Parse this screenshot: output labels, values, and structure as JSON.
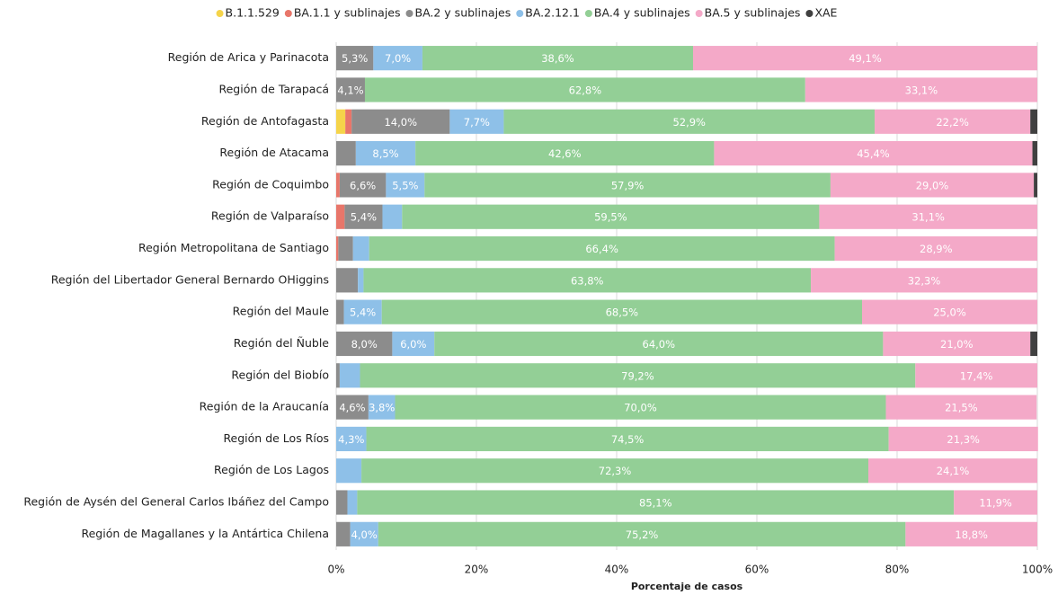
{
  "chart_data": {
    "type": "stacked_barh",
    "categories": [
      "Región de Arica y Parinacota",
      "Región de Tarapacá",
      "Región de Antofagasta",
      "Región de Atacama",
      "Región de Coquimbo",
      "Región de Valparaíso",
      "Región Metropolitana de Santiago",
      "Región del Libertador General Bernardo OHiggins",
      "Región del Maule",
      "Región del Ñuble",
      "Región del Biobío",
      "Región de la Araucanía",
      "Región de Los Ríos",
      "Región de Los Lagos",
      "Región de Aysén del General Carlos Ibáñez del Campo",
      "Región de Magallanes y la Antártica Chilena"
    ],
    "series": [
      {
        "name": "B.1.1.529",
        "color": "#f5d44a",
        "values": [
          0,
          0,
          1.3,
          0,
          0,
          0,
          0,
          0,
          0,
          0,
          0,
          0,
          0,
          0,
          0,
          0
        ],
        "value_labels": [
          null,
          null,
          null,
          null,
          null,
          null,
          null,
          null,
          null,
          null,
          null,
          null,
          null,
          null,
          null,
          null
        ]
      },
      {
        "name": "BA.1.1 y sublinajes",
        "color": "#e8766a",
        "values": [
          0,
          0,
          0.9,
          0,
          0.5,
          1.2,
          0.3,
          0,
          0,
          0,
          0,
          0,
          0,
          0,
          0,
          0
        ],
        "value_labels": [
          null,
          null,
          null,
          null,
          null,
          null,
          null,
          null,
          null,
          null,
          null,
          null,
          null,
          null,
          null,
          null
        ]
      },
      {
        "name": "BA.2 y sublinajes",
        "color": "#8c8c8c",
        "values": [
          5.3,
          4.1,
          14.0,
          2.8,
          6.6,
          5.4,
          2.1,
          3.1,
          1.1,
          8.0,
          0.5,
          4.6,
          0,
          0,
          1.6,
          2.0
        ],
        "value_labels": [
          "5,3%",
          "4,1%",
          "14,0%",
          null,
          "6,6%",
          "5,4%",
          null,
          null,
          null,
          "8,0%",
          null,
          "4,6%",
          null,
          null,
          null,
          null
        ]
      },
      {
        "name": "BA.2.12.1",
        "color": "#8ec0e8",
        "values": [
          7.0,
          0,
          7.7,
          8.5,
          5.5,
          2.8,
          2.3,
          0.8,
          5.4,
          6.0,
          2.9,
          3.8,
          4.3,
          3.6,
          1.4,
          4.0
        ],
        "value_labels": [
          "7,0%",
          null,
          "7,7%",
          "8,5%",
          "5,5%",
          null,
          null,
          null,
          "5,4%",
          "6,0%",
          null,
          "3,8%",
          "4,3%",
          null,
          null,
          "4,0%"
        ]
      },
      {
        "name": "BA.4 y sublinajes",
        "color": "#93cf96",
        "values": [
          38.6,
          62.8,
          52.9,
          42.6,
          57.9,
          59.5,
          66.4,
          63.8,
          68.5,
          64.0,
          79.2,
          70.0,
          74.5,
          72.3,
          85.1,
          75.2
        ],
        "value_labels": [
          "38,6%",
          "62,8%",
          "52,9%",
          "42,6%",
          "57,9%",
          "59,5%",
          "66,4%",
          "63,8%",
          "68,5%",
          "64,0%",
          "79,2%",
          "70,0%",
          "74,5%",
          "72,3%",
          "85,1%",
          "75,2%"
        ]
      },
      {
        "name": "BA.5 y sublinajes",
        "color": "#f4a9c8",
        "values": [
          49.1,
          33.1,
          22.2,
          45.4,
          29.0,
          31.1,
          28.9,
          32.3,
          25.0,
          21.0,
          17.4,
          21.5,
          21.3,
          24.1,
          11.9,
          18.8
        ],
        "value_labels": [
          "49,1%",
          "33,1%",
          "22,2%",
          "45,4%",
          "29,0%",
          "31,1%",
          "28,9%",
          "32,3%",
          "25,0%",
          "21,0%",
          "17,4%",
          "21,5%",
          "21,3%",
          "24,1%",
          "11,9%",
          "18,8%"
        ]
      },
      {
        "name": "XAE",
        "color": "#404040",
        "values": [
          0,
          0,
          1.0,
          0.7,
          0.5,
          0,
          0,
          0,
          0,
          1.0,
          0,
          0,
          0,
          0,
          0,
          0
        ],
        "value_labels": [
          null,
          null,
          null,
          null,
          null,
          null,
          null,
          null,
          null,
          null,
          null,
          null,
          null,
          null,
          null,
          null
        ]
      }
    ],
    "xlabel": "Porcentaje de casos",
    "xlim": [
      0,
      100
    ],
    "xticks": [
      {
        "value": 0,
        "label": "0%"
      },
      {
        "value": 20,
        "label": "20%"
      },
      {
        "value": 40,
        "label": "40%"
      },
      {
        "value": 60,
        "label": "60%"
      },
      {
        "value": 80,
        "label": "80%"
      },
      {
        "value": 100,
        "label": "100%"
      }
    ],
    "grid": true,
    "legend": "top"
  }
}
